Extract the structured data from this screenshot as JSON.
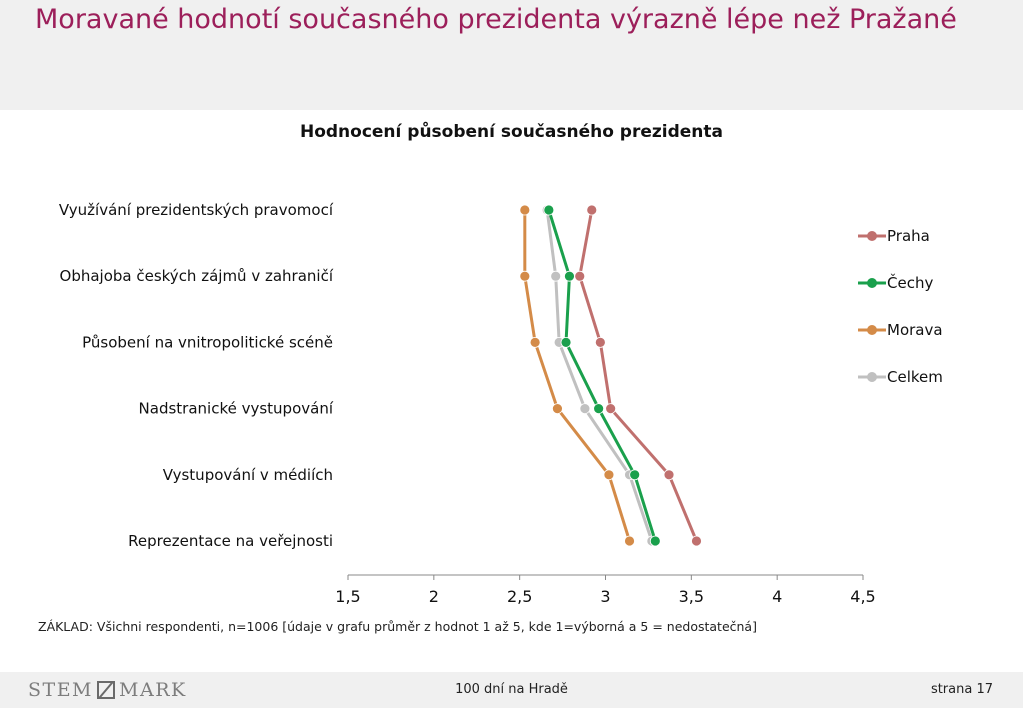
{
  "page": {
    "title": "Moravané hodnotí současného prezidenta výrazně lépe než Pražané",
    "footnote": "ZÁKLAD: Všichni respondenti, n=1006 [údaje v grafu průměr z hodnot 1 až 5, kde 1=výborná a 5 = nedostatečná]"
  },
  "footer": {
    "logo_left": "STEM",
    "logo_right": "MARK",
    "center": "100 dní na Hradě",
    "page": "strana 17"
  },
  "chart_data": {
    "type": "line",
    "orientation": "horizontal-values",
    "title": "Hodnocení působení současného prezidenta",
    "categories": [
      "Využívání prezidentských pravomocí",
      "Obhajoba českých zájmů v zahraničí",
      "Působení na vnitropolitické scéně",
      "Nadstranické vystupování",
      "Vystupování v médiích",
      "Reprezentace na veřejnosti"
    ],
    "xlim": [
      1.5,
      4.5
    ],
    "ticks": [
      1.5,
      2,
      2.5,
      3,
      3.5,
      4,
      4.5
    ],
    "tick_labels": [
      "1,5",
      "2",
      "2,5",
      "3",
      "3,5",
      "4",
      "4,5"
    ],
    "legend_position": "right",
    "grid": false,
    "series": [
      {
        "name": "Praha",
        "color": "#c0706e",
        "values": [
          2.92,
          2.85,
          2.97,
          3.03,
          3.37,
          3.53
        ]
      },
      {
        "name": "Čechy",
        "color": "#1aa04c",
        "values": [
          2.67,
          2.79,
          2.77,
          2.96,
          3.17,
          3.29
        ]
      },
      {
        "name": "Morava",
        "color": "#d48b48",
        "values": [
          2.53,
          2.53,
          2.59,
          2.72,
          3.02,
          3.14
        ]
      },
      {
        "name": "Celkem",
        "color": "#c0c0c0",
        "values": [
          2.66,
          2.71,
          2.73,
          2.88,
          3.14,
          3.27
        ]
      }
    ]
  }
}
